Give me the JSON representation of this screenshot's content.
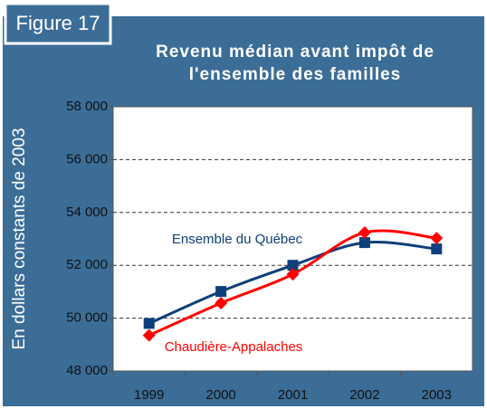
{
  "chart_data": {
    "type": "line",
    "figure_label": "Figure 17",
    "title_lines": [
      "Revenu médian avant impôt de",
      "l'ensemble des familles"
    ],
    "y_label": "En dollars constants de 2003",
    "categories": [
      "1999",
      "2000",
      "2001",
      "2002",
      "2003"
    ],
    "series": [
      {
        "name": "Ensemble du Québec",
        "color": "#0d3f7a",
        "marker": "square",
        "values": [
          49800,
          51010,
          52000,
          52860,
          52620
        ]
      },
      {
        "name": "Chaudière-Appalaches",
        "color": "#ff0000",
        "marker": "diamond",
        "values": [
          49350,
          50570,
          51660,
          53240,
          53030
        ]
      }
    ],
    "ylim": [
      48000,
      58000
    ],
    "yticks": [
      {
        "value": 48000,
        "label": "48 000"
      },
      {
        "value": 50000,
        "label": "50 000"
      },
      {
        "value": 52000,
        "label": "52 000"
      },
      {
        "value": 54000,
        "label": "54 000"
      },
      {
        "value": 56000,
        "label": "56 000"
      },
      {
        "value": 58000,
        "label": "58 000"
      }
    ],
    "grid": true
  }
}
